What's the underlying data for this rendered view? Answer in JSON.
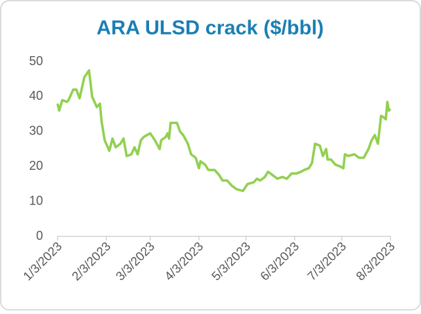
{
  "chart_data": {
    "type": "line",
    "title": "ARA ULSD crack ($/bbl)",
    "x": [
      "2023-01-03",
      "2023-01-04",
      "2023-01-06",
      "2023-01-09",
      "2023-01-10",
      "2023-01-13",
      "2023-01-15",
      "2023-01-17",
      "2023-01-18",
      "2023-01-20",
      "2023-01-23",
      "2023-01-24",
      "2023-01-25",
      "2023-01-28",
      "2023-01-30",
      "2023-01-31",
      "2023-02-02",
      "2023-02-05",
      "2023-02-07",
      "2023-02-09",
      "2023-02-12",
      "2023-02-14",
      "2023-02-16",
      "2023-02-19",
      "2023-02-21",
      "2023-02-23",
      "2023-02-25",
      "2023-02-27",
      "2023-03-01",
      "2023-03-03",
      "2023-03-06",
      "2023-03-09",
      "2023-03-10",
      "2023-03-13",
      "2023-03-14",
      "2023-03-15",
      "2023-03-16",
      "2023-03-20",
      "2023-03-22",
      "2023-03-24",
      "2023-03-27",
      "2023-03-29",
      "2023-04-01",
      "2023-04-03",
      "2023-04-04",
      "2023-04-07",
      "2023-04-09",
      "2023-04-13",
      "2023-04-16",
      "2023-04-18",
      "2023-04-21",
      "2023-04-24",
      "2023-04-27",
      "2023-05-01",
      "2023-05-04",
      "2023-05-08",
      "2023-05-10",
      "2023-05-12",
      "2023-05-15",
      "2023-05-17",
      "2023-05-20",
      "2023-05-23",
      "2023-05-26",
      "2023-05-29",
      "2023-06-01",
      "2023-06-04",
      "2023-06-07",
      "2023-06-09",
      "2023-06-12",
      "2023-06-14",
      "2023-06-16",
      "2023-06-19",
      "2023-06-21",
      "2023-06-23",
      "2023-06-24",
      "2023-06-26",
      "2023-06-29",
      "2023-07-02",
      "2023-07-04",
      "2023-07-05",
      "2023-07-07",
      "2023-07-11",
      "2023-07-14",
      "2023-07-17",
      "2023-07-20",
      "2023-07-22",
      "2023-07-24",
      "2023-07-26",
      "2023-07-28",
      "2023-07-30",
      "2023-07-31",
      "2023-08-01",
      "2023-08-02",
      "2023-08-03"
    ],
    "series": [
      {
        "color": "#92d050",
        "values": [
          38,
          36,
          39,
          38.5,
          39,
          42,
          42,
          39.5,
          41.5,
          45.5,
          47.5,
          44,
          40,
          37,
          38,
          33,
          27.5,
          24.5,
          28,
          25.5,
          26.5,
          28,
          23,
          23.5,
          25.5,
          23.5,
          27.5,
          28.5,
          29,
          29.5,
          27.5,
          25,
          27.5,
          28.5,
          29.5,
          28,
          32.5,
          32.5,
          30,
          29,
          26.5,
          23.5,
          22.5,
          19.5,
          21.5,
          20.5,
          19,
          19,
          17.5,
          16,
          16,
          14.5,
          13.5,
          13,
          15,
          15.5,
          16.5,
          16,
          17,
          18.5,
          17.5,
          16.5,
          17,
          16.5,
          18,
          18,
          18.5,
          19,
          19.5,
          21,
          26.5,
          26,
          23,
          25,
          22,
          22,
          20.5,
          20,
          19.5,
          23.5,
          23,
          23.5,
          22.5,
          22.5,
          25,
          27.5,
          29,
          26.5,
          34.5,
          34,
          33.5,
          38.5,
          36,
          36.5
        ]
      }
    ],
    "xlim": [
      "2023-01-03",
      "2023-08-03"
    ],
    "xticks": [
      {
        "value": "2023-01-03",
        "label": "1/3/2023"
      },
      {
        "value": "2023-02-03",
        "label": "2/3/2023"
      },
      {
        "value": "2023-03-03",
        "label": "3/3/2023"
      },
      {
        "value": "2023-04-03",
        "label": "4/3/2023"
      },
      {
        "value": "2023-05-03",
        "label": "5/3/2023"
      },
      {
        "value": "2023-06-03",
        "label": "6/3/2023"
      },
      {
        "value": "2023-07-03",
        "label": "7/3/2023"
      },
      {
        "value": "2023-08-03",
        "label": "8/3/2023"
      }
    ],
    "ylim": [
      0,
      50
    ],
    "yticks": [
      0,
      10,
      20,
      30,
      40,
      50
    ]
  }
}
